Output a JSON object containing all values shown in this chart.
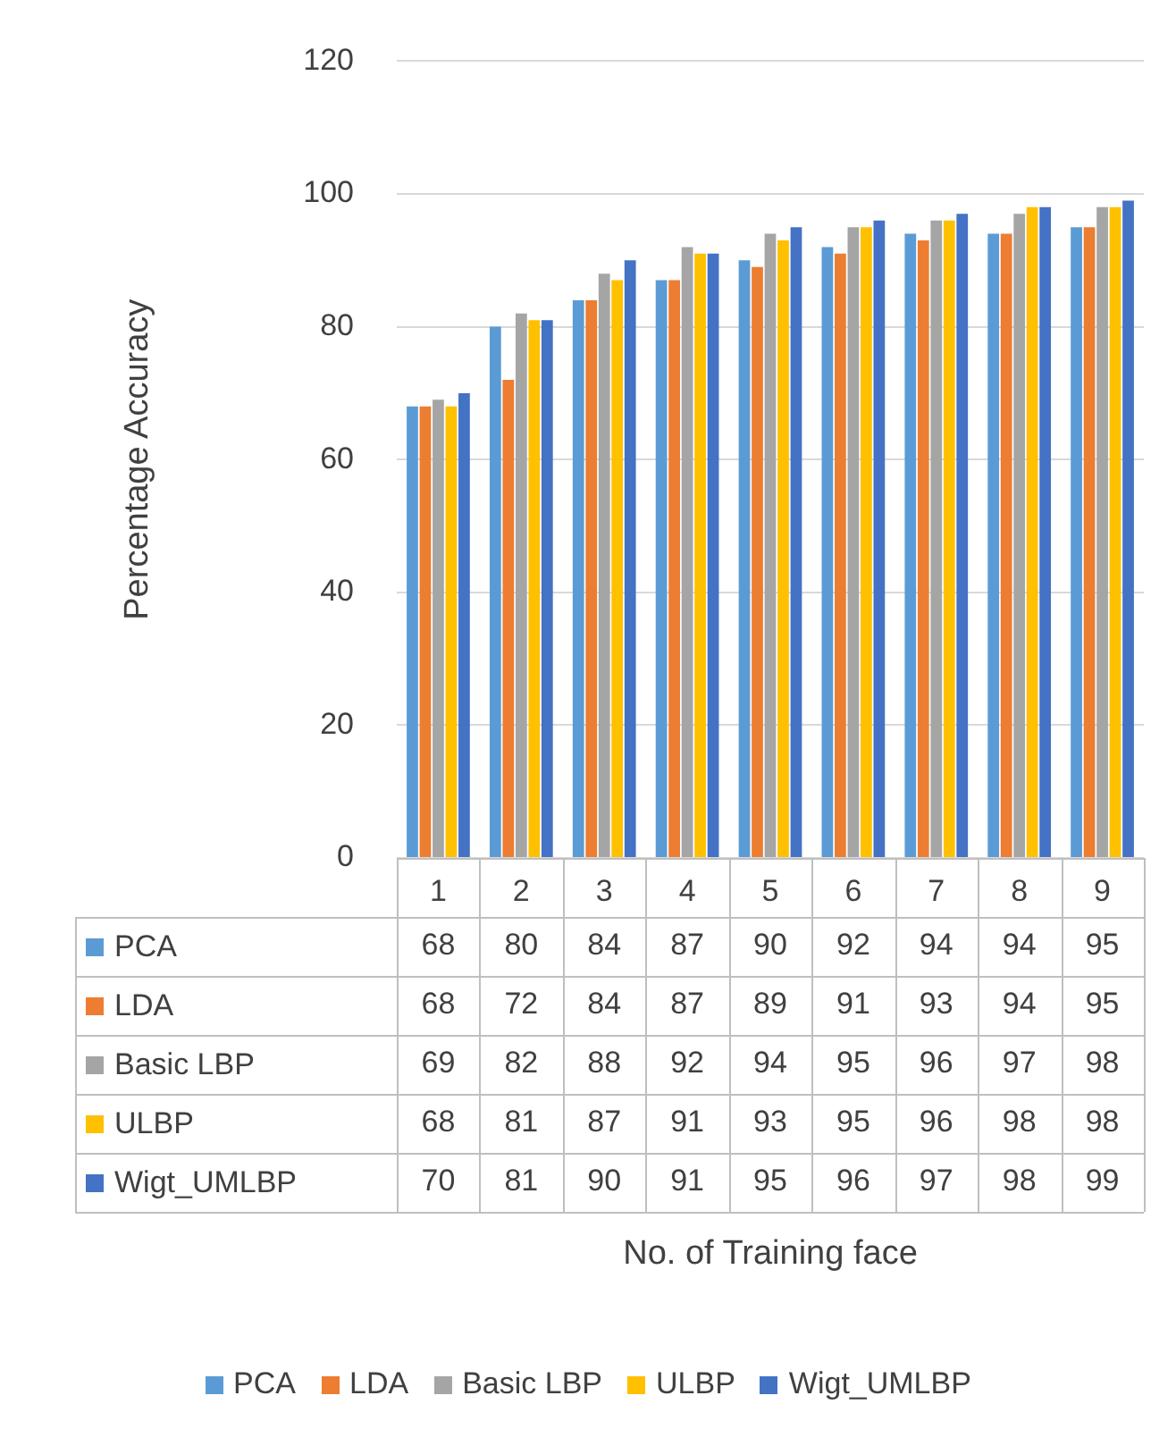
{
  "chart_data": {
    "type": "bar",
    "annotations": [
      "No. of Training face"
    ],
    "ylabel": "Percentage Accuracy",
    "categories": [
      "1",
      "2",
      "3",
      "4",
      "5",
      "6",
      "7",
      "8",
      "9"
    ],
    "series": [
      {
        "name": "PCA",
        "color": "#5b9bd5",
        "values": [
          68,
          80,
          84,
          87,
          90,
          92,
          94,
          94,
          95
        ]
      },
      {
        "name": "LDA",
        "color": "#ed7d31",
        "values": [
          68,
          72,
          84,
          87,
          89,
          91,
          93,
          94,
          95
        ]
      },
      {
        "name": "Basic LBP",
        "color": "#a5a5a5",
        "values": [
          69,
          82,
          88,
          92,
          94,
          95,
          96,
          97,
          98
        ]
      },
      {
        "name": "ULBP",
        "color": "#ffc000",
        "values": [
          68,
          81,
          87,
          91,
          93,
          95,
          96,
          98,
          98
        ]
      },
      {
        "name": "Wigt_UMLBP",
        "color": "#4472c4",
        "values": [
          70,
          81,
          90,
          91,
          95,
          96,
          97,
          98,
          99
        ]
      }
    ],
    "ylim": [
      0,
      120
    ],
    "yticks": [
      0,
      20,
      40,
      60,
      80,
      100,
      120
    ],
    "grid": "y",
    "legend": "bottom",
    "data_labels": true
  }
}
